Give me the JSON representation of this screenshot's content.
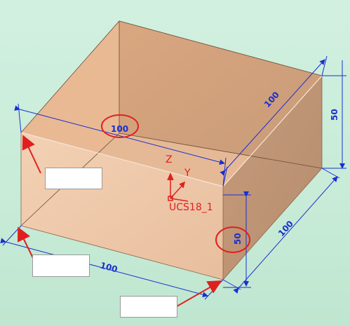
{
  "dimensions": {
    "top_width": "100",
    "top_depth": "100",
    "right_height": "50",
    "front_height": "50",
    "bottom_width": "100",
    "bottom_depth": "100"
  },
  "ucs": {
    "z_label": "Z",
    "y_label": "Y",
    "name": "UCS18_1"
  },
  "labels": {
    "label1": "",
    "label2": "",
    "label3": ""
  },
  "colors": {
    "background": "#c8ecd8",
    "box_face": "#f2c8a8",
    "dimension": "#1a2fd0",
    "annotation": "#e02020"
  }
}
